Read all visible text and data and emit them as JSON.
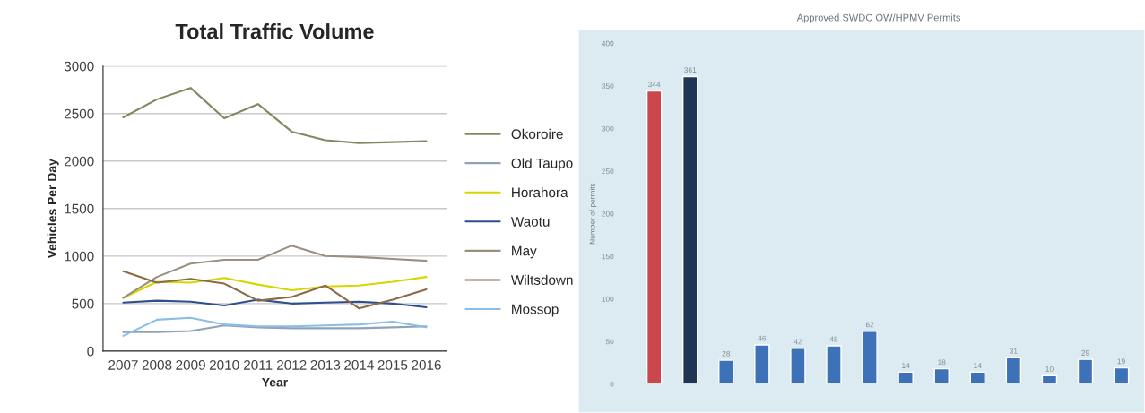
{
  "chart_data": [
    {
      "type": "line",
      "title": "Total Traffic Volume",
      "xlabel": "Year",
      "ylabel": "Vehicles Per Day",
      "categories": [
        "2007",
        "2008",
        "2009",
        "2010",
        "2011",
        "2012",
        "2013",
        "2014",
        "2015",
        "2016"
      ],
      "ylim": [
        0,
        3000
      ],
      "yticks": [
        0,
        500,
        1000,
        1500,
        2000,
        2500,
        3000
      ],
      "grid": "y",
      "legend": "right",
      "marker": "none",
      "line_style": "solid",
      "series": [
        {
          "name": "Okoroire",
          "color": "#7f8a60",
          "values": [
            2460,
            2650,
            2770,
            2450,
            2600,
            2310,
            2220,
            2190,
            2200,
            2210
          ]
        },
        {
          "name": "Old Taupo",
          "color": "#8fa3b8",
          "values": [
            200,
            200,
            210,
            270,
            250,
            240,
            240,
            240,
            250,
            260
          ]
        },
        {
          "name": "Horahora",
          "color": "#d6d600",
          "values": [
            560,
            730,
            720,
            770,
            700,
            640,
            680,
            690,
            730,
            780
          ]
        },
        {
          "name": "Waotu",
          "color": "#2e4f8f",
          "values": [
            510,
            530,
            520,
            480,
            540,
            500,
            510,
            520,
            500,
            460
          ]
        },
        {
          "name": "May",
          "color": "#9a9080",
          "values": [
            560,
            780,
            920,
            960,
            960,
            1110,
            1000,
            990,
            970,
            950
          ]
        },
        {
          "name": "Wiltsdown",
          "color": "#8b6a45",
          "values": [
            840,
            720,
            760,
            710,
            530,
            570,
            690,
            450,
            540,
            650
          ]
        },
        {
          "name": "Mossop",
          "color": "#8cbde8",
          "values": [
            160,
            330,
            350,
            280,
            260,
            260,
            270,
            280,
            310,
            250
          ]
        }
      ]
    },
    {
      "type": "bar",
      "title": "Approved SWDC OW/HPMV Permits",
      "ylabel": "Number of permits",
      "categories": [
        null,
        null,
        null,
        null,
        null,
        null,
        null,
        null,
        null,
        null,
        null,
        null,
        null,
        null
      ],
      "ylim": [
        0,
        400
      ],
      "yticks": [
        0,
        50,
        100,
        150,
        200,
        250,
        300,
        350,
        400
      ],
      "grid": false,
      "data_labels": true,
      "values": [
        344,
        361,
        28,
        46,
        42,
        45,
        62,
        14,
        18,
        14,
        31,
        10,
        29,
        19
      ],
      "colors": [
        "#c9474d",
        "#1f3554",
        "#3e72b8",
        "#3e72b8",
        "#3e72b8",
        "#3e72b8",
        "#3e72b8",
        "#3e72b8",
        "#3e72b8",
        "#3e72b8",
        "#3e72b8",
        "#3e72b8",
        "#3e72b8",
        "#3e72b8"
      ]
    }
  ]
}
